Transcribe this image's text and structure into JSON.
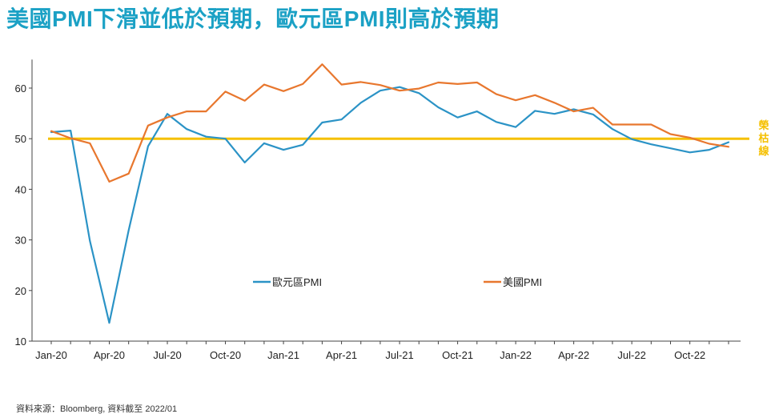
{
  "title": "美國PMI下滑並低於預期，歐元區PMI則高於預期",
  "source": "資料來源：Bloomberg, 資料截至 2022/01",
  "colors": {
    "title": "#1ba1c5",
    "eurozone": "#2b93c6",
    "us": "#e8772e",
    "reference": "#f5c000",
    "axis": "#444444"
  },
  "chart_data": {
    "type": "line",
    "title": "美國PMI下滑並低於預期，歐元區PMI則高於預期",
    "xlabel": "",
    "ylabel": "",
    "ylim": [
      10,
      65
    ],
    "yticks": [
      10,
      20,
      30,
      40,
      50,
      60
    ],
    "x_tick_labels": [
      "Jan-20",
      "Apr-20",
      "Jul-20",
      "Oct-20",
      "Jan-21",
      "Apr-21",
      "Jul-21",
      "Oct-21",
      "Jan-22",
      "Apr-22",
      "Jul-22",
      "Oct-22"
    ],
    "x_tick_index": [
      0,
      3,
      6,
      9,
      12,
      15,
      18,
      21,
      24,
      27,
      30,
      33
    ],
    "n_points": 36,
    "reference_line": {
      "value": 50,
      "label": "榮枯線"
    },
    "legend": [
      "歐元區PMI",
      "美國PMI"
    ],
    "series": [
      {
        "name": "歐元區PMI",
        "values": [
          51.3,
          51.6,
          29.8,
          13.6,
          31.9,
          48.5,
          54.9,
          51.9,
          50.4,
          50.0,
          45.3,
          49.1,
          47.8,
          48.8,
          53.2,
          53.8,
          57.1,
          59.5,
          60.2,
          59.0,
          56.2,
          54.2,
          55.4,
          53.3,
          52.3,
          55.5,
          54.9,
          55.8,
          54.8,
          51.9,
          49.9,
          48.9,
          48.1,
          47.3,
          47.8,
          49.3
        ]
      },
      {
        "name": "美國PMI",
        "values": [
          51.5,
          50.1,
          49.1,
          41.5,
          43.1,
          52.6,
          54.2,
          55.4,
          55.4,
          59.3,
          57.5,
          60.7,
          59.4,
          60.8,
          64.7,
          60.7,
          61.2,
          60.6,
          59.5,
          59.9,
          61.1,
          60.8,
          61.1,
          58.8,
          57.6,
          58.6,
          57.1,
          55.4,
          56.1,
          52.8,
          52.8,
          52.8,
          50.9,
          50.2,
          49.0,
          48.4
        ]
      }
    ]
  }
}
